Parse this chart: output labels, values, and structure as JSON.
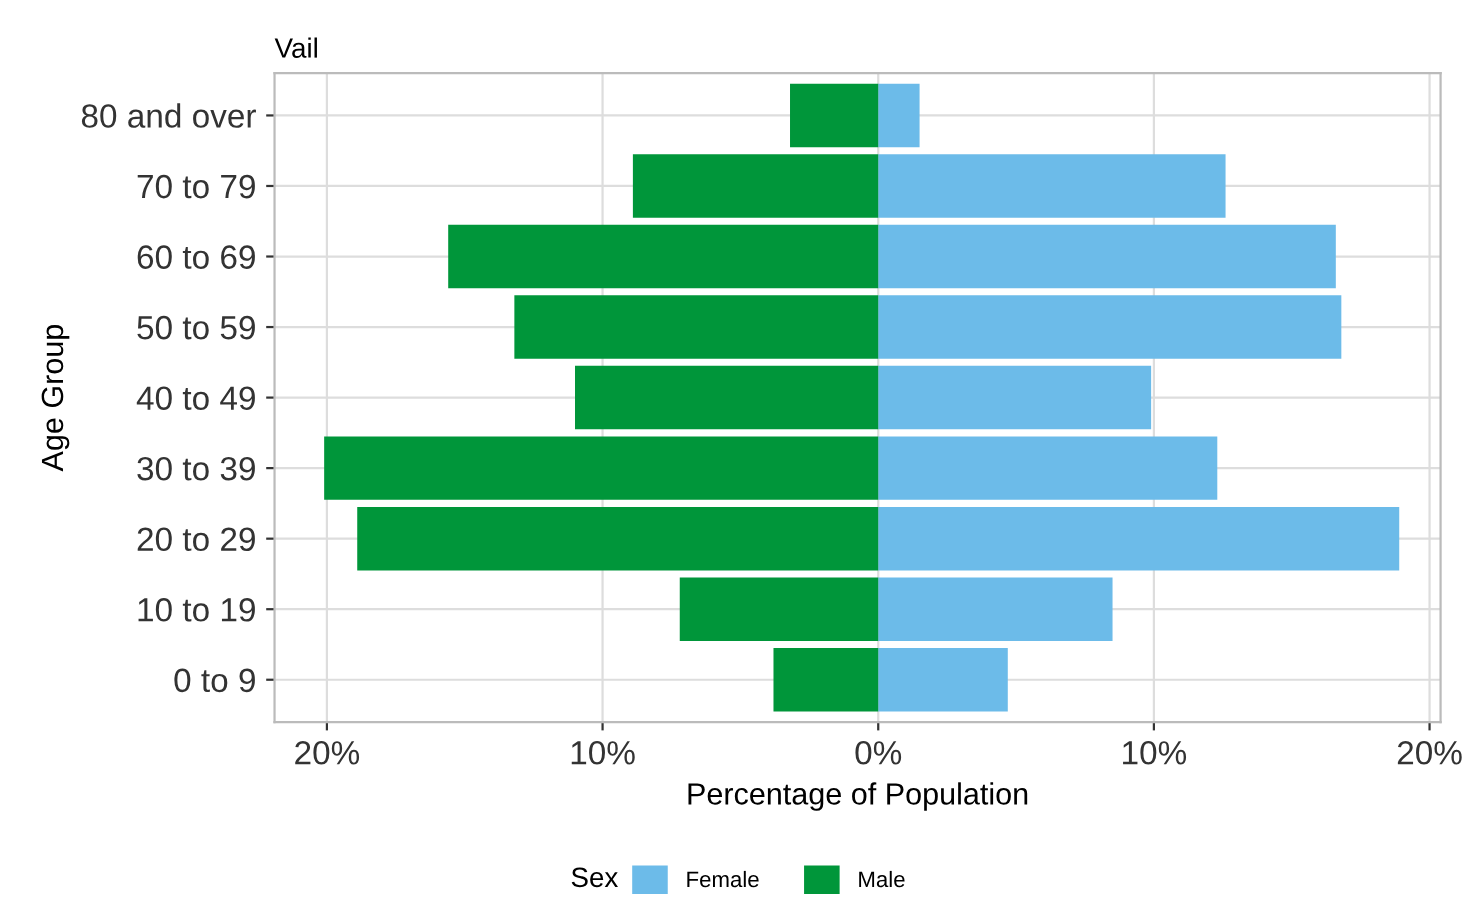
{
  "chart_data": {
    "type": "bar",
    "orientation": "horizontal",
    "stacked": true,
    "subtitle": "Vail",
    "xlabel": "Percentage of Population",
    "ylabel": "Age Group",
    "legend_title": "Sex",
    "categories": [
      "80 and over",
      "70 to 79",
      "60 to 69",
      "50 to 59",
      "40 to 49",
      "30 to 39",
      "20 to 29",
      "10 to 19",
      "0 to 9"
    ],
    "series": [
      {
        "name": "Female",
        "color": "#6cbbe9",
        "values": [
          1.5,
          12.6,
          16.6,
          16.8,
          9.9,
          12.3,
          18.9,
          8.5,
          4.7
        ]
      },
      {
        "name": "Male",
        "color": "#00963a",
        "values": [
          -3.2,
          -8.9,
          -15.6,
          -13.2,
          -11.0,
          -20.1,
          -18.9,
          -7.2,
          -3.8
        ]
      }
    ],
    "xlim": [
      -21.9,
      20.4
    ],
    "xticks": [
      {
        "value": -20,
        "label": "20%"
      },
      {
        "value": -10,
        "label": "10%"
      },
      {
        "value": 0,
        "label": "0%"
      },
      {
        "value": 10,
        "label": "10%"
      },
      {
        "value": 20,
        "label": "20%"
      }
    ],
    "grid": true,
    "legend": "bottom"
  }
}
